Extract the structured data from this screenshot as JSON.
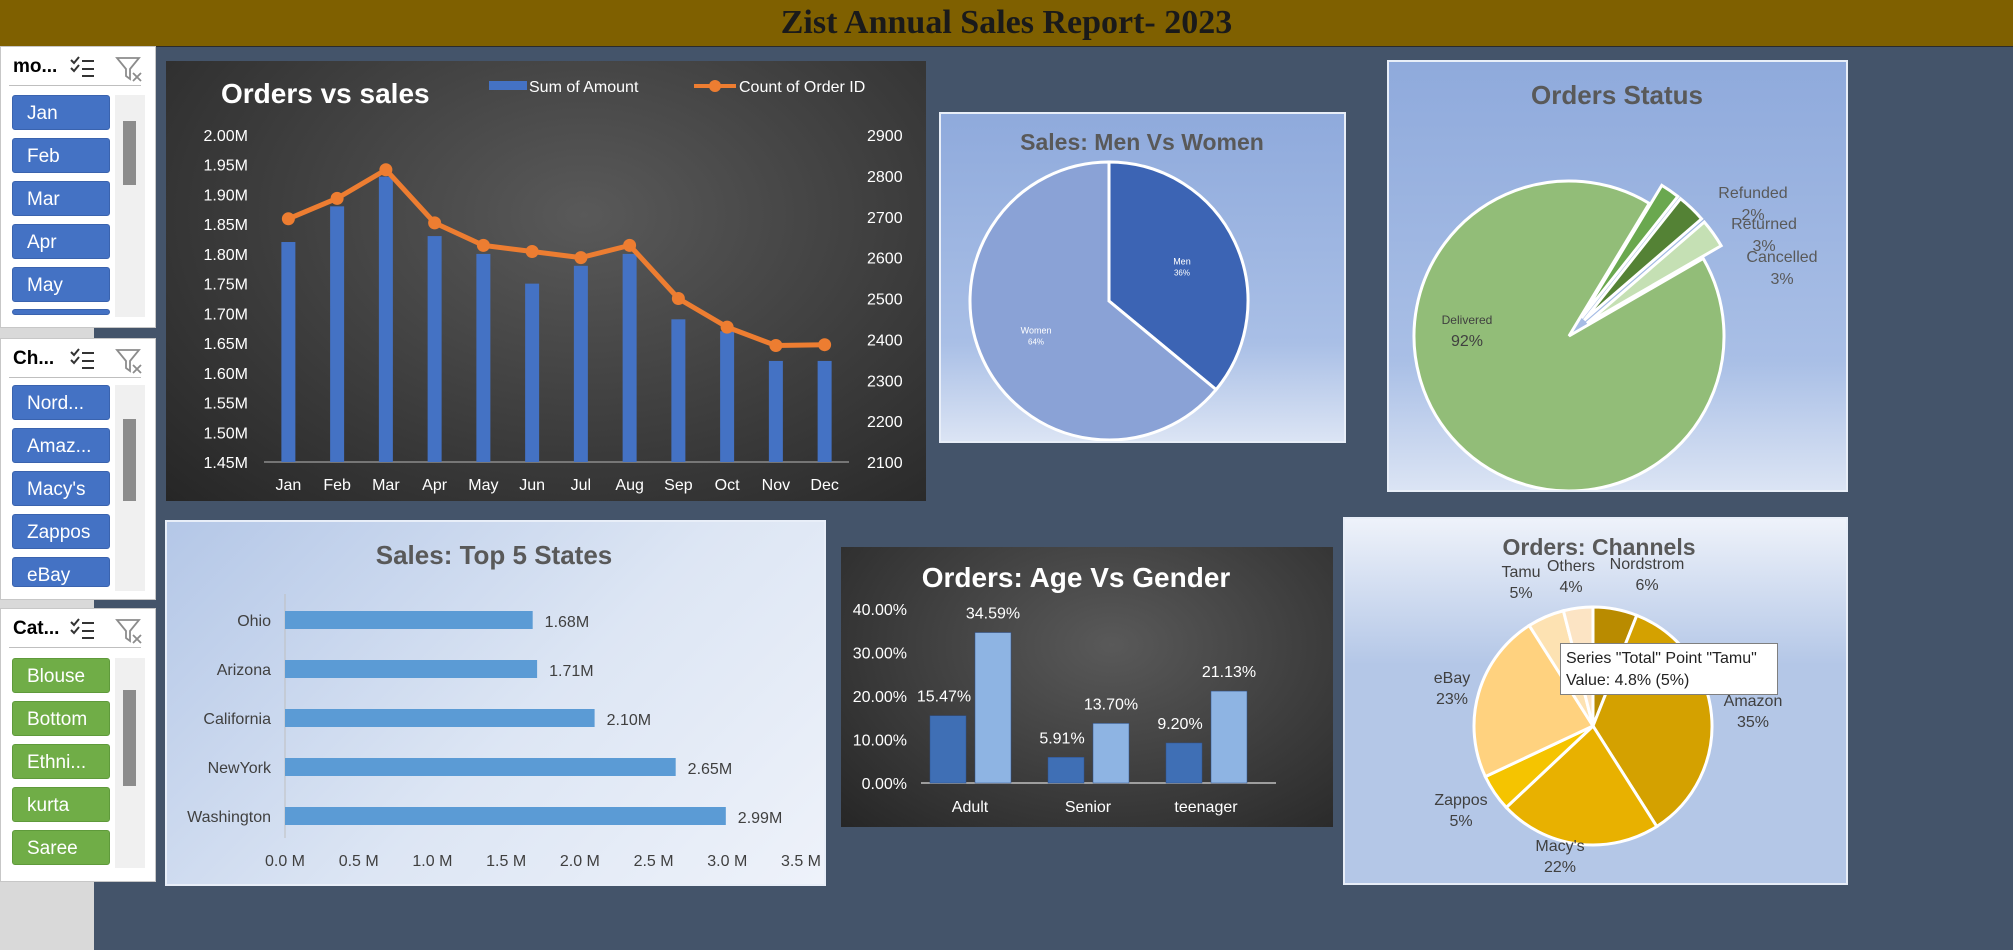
{
  "report": {
    "title": "Zist Annual Sales Report- 2023"
  },
  "slicers": [
    {
      "title": "mo...",
      "style": "blue",
      "items": [
        "Jan",
        "Feb",
        "Mar",
        "Apr",
        "May"
      ]
    },
    {
      "title": "Ch...",
      "style": "blue",
      "items": [
        "Nord...",
        "Amaz...",
        "Macy's",
        "Zappos",
        "eBay"
      ]
    },
    {
      "title": "Cat...",
      "style": "green",
      "items": [
        "Blouse",
        "Bottom",
        "Ethni...",
        "kurta",
        "Saree"
      ]
    }
  ],
  "colors": {
    "bar_blue": "#4472c4",
    "line_orange": "#ed7d31",
    "header_bg": "#7f6000",
    "page_bg": "#44546a",
    "slicer_green": "#70ad47"
  },
  "chart_data": [
    {
      "id": "orders_vs_sales",
      "type": "bar+line",
      "title": "Orders vs sales",
      "categories": [
        "Jan",
        "Feb",
        "Mar",
        "Apr",
        "May",
        "Jun",
        "Jul",
        "Aug",
        "Sep",
        "Oct",
        "Nov",
        "Dec"
      ],
      "series": [
        {
          "name": "Sum of Amount",
          "axis": "left",
          "values": [
            1.82,
            1.88,
            1.93,
            1.83,
            1.8,
            1.75,
            1.78,
            1.8,
            1.69,
            1.67,
            1.62,
            1.62
          ]
        },
        {
          "name": "Count of Order ID",
          "axis": "right",
          "values": [
            2695,
            2745,
            2815,
            2685,
            2630,
            2615,
            2600,
            2630,
            2500,
            2430,
            2385,
            2387
          ]
        }
      ],
      "y_left": {
        "ylim": [
          1.45,
          2.0
        ],
        "ticks": [
          "1.45M",
          "1.50M",
          "1.55M",
          "1.60M",
          "1.65M",
          "1.70M",
          "1.75M",
          "1.80M",
          "1.85M",
          "1.90M",
          "1.95M",
          "2.00M"
        ]
      },
      "y_right": {
        "ylim": [
          2100,
          2900
        ],
        "ticks": [
          "2100",
          "2200",
          "2300",
          "2400",
          "2500",
          "2600",
          "2700",
          "2800",
          "2900"
        ]
      },
      "legend": "top"
    },
    {
      "id": "men_vs_women",
      "type": "pie",
      "title": "Sales: Men Vs Women",
      "labels": [
        "Men",
        "Women"
      ],
      "values": [
        36,
        64
      ],
      "value_labels": [
        "36%",
        "64%"
      ],
      "colors": [
        "#3c64b4",
        "#8aa2d6"
      ]
    },
    {
      "id": "orders_status",
      "type": "pie",
      "title": "Orders Status",
      "labels": [
        "Delivered",
        "Refunded",
        "Returned",
        "Cancelled"
      ],
      "values": [
        92,
        2,
        3,
        3
      ],
      "value_labels": [
        "92%",
        "2%",
        "3%",
        "3%"
      ],
      "colors": [
        "#92bd78",
        "#6aa84f",
        "#548235",
        "#c5e0b4"
      ]
    },
    {
      "id": "top5_states",
      "type": "bar",
      "orientation": "horizontal",
      "title": "Sales: Top 5 States",
      "categories": [
        "Ohio",
        "Arizona",
        "California",
        "NewYork",
        "Washington"
      ],
      "values": [
        1.68,
        1.71,
        2.1,
        2.65,
        2.99
      ],
      "value_labels": [
        "1.68M",
        "1.71M",
        "2.10M",
        "2.65M",
        "2.99M"
      ],
      "xlim": [
        0,
        3.5
      ],
      "ticks": [
        "0.0 M",
        "0.5 M",
        "1.0 M",
        "1.5 M",
        "2.0 M",
        "2.5 M",
        "3.0 M",
        "3.5 M"
      ]
    },
    {
      "id": "age_vs_gender",
      "type": "bar",
      "title": "Orders: Age Vs Gender",
      "categories": [
        "Adult",
        "Senior",
        "teenager"
      ],
      "series": [
        {
          "values": [
            15.47,
            5.91,
            9.2
          ],
          "value_labels": [
            "15.47%",
            "5.91%",
            "9.20%"
          ]
        },
        {
          "values": [
            34.59,
            13.7,
            21.13
          ],
          "value_labels": [
            "34.59%",
            "13.70%",
            "21.13%"
          ]
        }
      ],
      "ylim": [
        0,
        40
      ],
      "ticks": [
        "0.00%",
        "10.00%",
        "20.00%",
        "30.00%",
        "40.00%"
      ]
    },
    {
      "id": "orders_channels",
      "type": "pie",
      "title": "Orders: Channels",
      "labels": [
        "Nordstrom",
        "Amazon",
        "Macy's",
        "Zappos",
        "eBay",
        "Tamu",
        "Others"
      ],
      "values": [
        6,
        35,
        22,
        5,
        23,
        5,
        4
      ],
      "value_labels": [
        "6%",
        "35%",
        "22%",
        "5%",
        "23%",
        "5%",
        "4%"
      ],
      "colors": [
        "#b98b00",
        "#d4a100",
        "#e8b100",
        "#f5c400",
        "#ffd27f",
        "#fde2b2",
        "#fce4c4"
      ],
      "tooltip": {
        "line1": "Series \"Total\" Point \"Tamu\"",
        "line2": "Value: 4.8% (5%)"
      }
    }
  ]
}
